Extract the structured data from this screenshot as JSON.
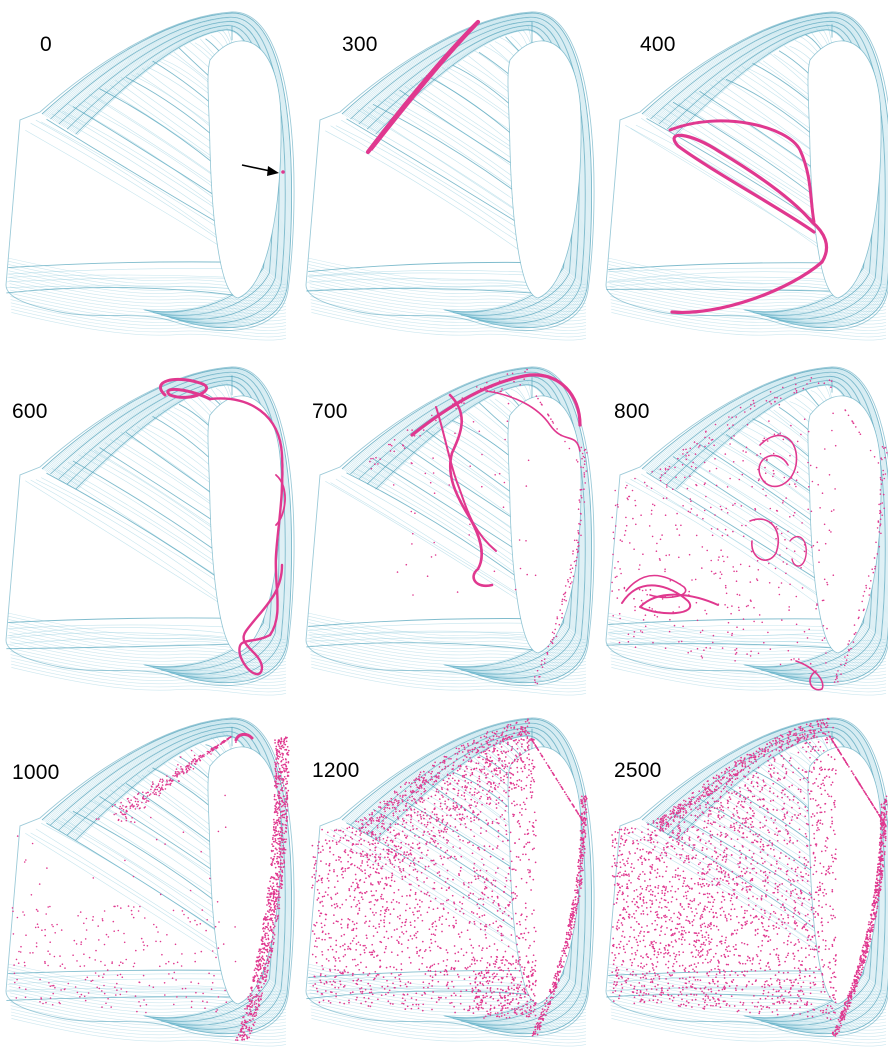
{
  "figure": {
    "colors": {
      "attractor": "#7fc4d6",
      "attractor_dark": "#4a9fb8",
      "trajectory": "#e0388f",
      "arrow": "#000000"
    },
    "panels": [
      {
        "label": "0",
        "stage": "seed",
        "has_arrow": true
      },
      {
        "label": "300",
        "stage": "segment"
      },
      {
        "label": "400",
        "stage": "fold"
      },
      {
        "label": "600",
        "stage": "loops"
      },
      {
        "label": "700",
        "stage": "tangle"
      },
      {
        "label": "800",
        "stage": "spread"
      },
      {
        "label": "1000",
        "stage": "partial_fill"
      },
      {
        "label": "1200",
        "stage": "dense_fill"
      },
      {
        "label": "2500",
        "stage": "full_fill"
      }
    ]
  }
}
